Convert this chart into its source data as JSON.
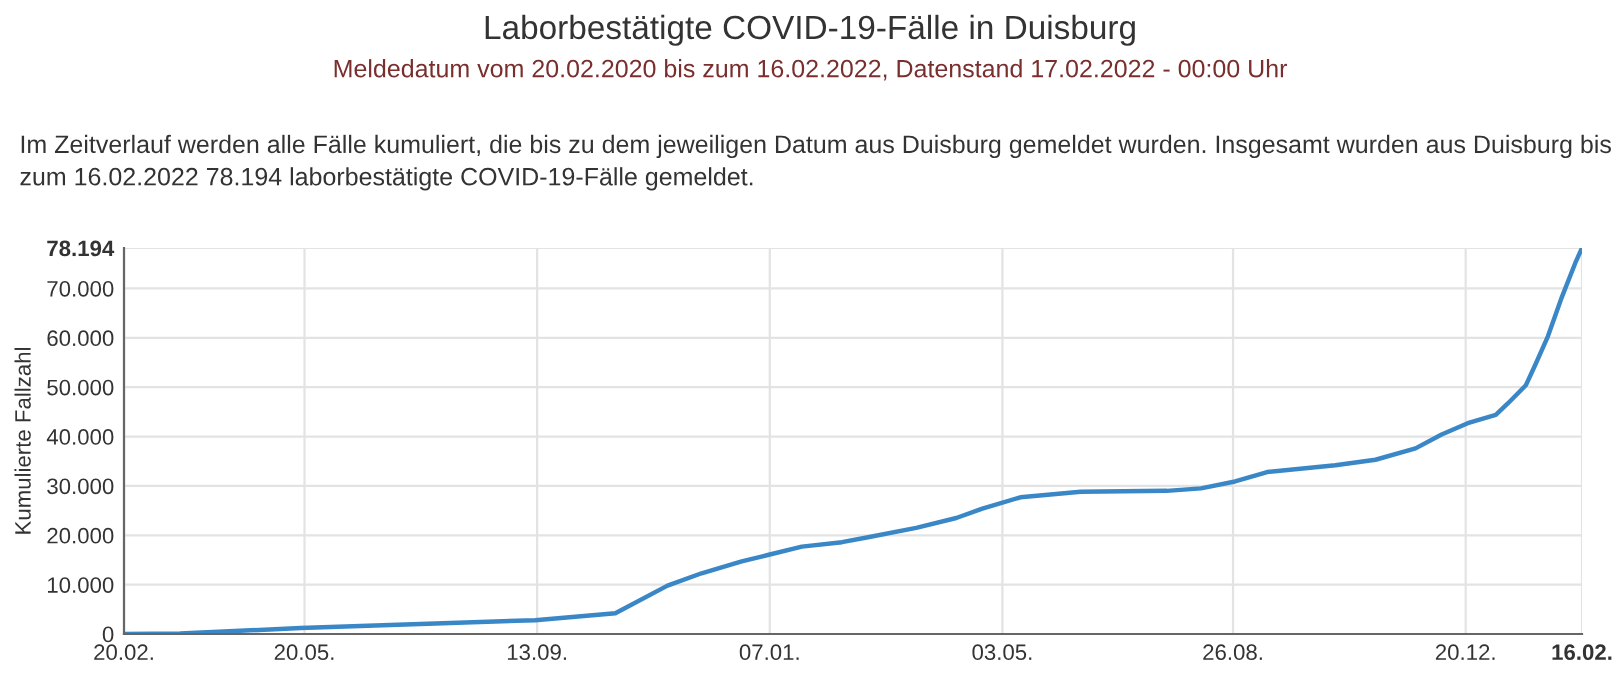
{
  "chart_data": {
    "type": "line",
    "title": "Laborbestätigte COVID-19-Fälle in Duisburg",
    "subtitle": "Meldedatum vom 20.02.2020 bis zum 16.02.2022, Datenstand 17.02.2022 - 00:00 Uhr",
    "annotations": [
      "Im Zeitverlauf werden alle Fälle kumuliert, die bis zu dem jeweiligen Datum aus Duisburg gemeldet wurden. Insgesamt wurden aus Duisburg bis zum 16.02.2022 78.194 laborbestätigte COVID-19-Fälle gemeldet."
    ],
    "ylabel": "Kumulierte Fallzahl",
    "x": [
      "2020-02-20",
      "2020-03-19",
      "2020-05-18",
      "2020-09-12",
      "2020-10-22",
      "2020-11-17",
      "2020-12-04",
      "2020-12-24",
      "2021-01-06",
      "2021-01-23",
      "2021-02-12",
      "2021-02-25",
      "2021-03-21",
      "2021-04-10",
      "2021-04-23",
      "2021-05-12",
      "2021-06-11",
      "2021-07-24",
      "2021-08-10",
      "2021-08-27",
      "2021-09-12",
      "2021-10-16",
      "2021-11-05",
      "2021-11-25",
      "2021-12-08",
      "2021-12-21",
      "2022-01-04",
      "2022-01-10",
      "2022-01-19",
      "2022-01-24",
      "2022-01-30",
      "2022-02-06",
      "2022-02-13",
      "2022-02-16"
    ],
    "series": [
      {
        "color": "#3a87c7",
        "values": [
          0,
          100,
          1200,
          2800,
          4200,
          9800,
          12300,
          14700,
          16000,
          17700,
          18600,
          19600,
          21500,
          23500,
          25400,
          27700,
          28800,
          29000,
          29500,
          30900,
          32800,
          34200,
          35300,
          37600,
          40400,
          42700,
          44400,
          46700,
          50400,
          54800,
          60300,
          68300,
          75500,
          78194
        ]
      }
    ],
    "xlim": [
      "2020-02-20",
      "2022-02-16"
    ],
    "xticks": [
      {
        "value": "2020-02-20",
        "label": "20.02."
      },
      {
        "value": "2020-05-20",
        "label": "20.05."
      },
      {
        "value": "2020-09-13",
        "label": "13.09."
      },
      {
        "value": "2021-01-07",
        "label": "07.01."
      },
      {
        "value": "2021-05-03",
        "label": "03.05."
      },
      {
        "value": "2021-08-26",
        "label": "26.08."
      },
      {
        "value": "2021-12-20",
        "label": "20.12."
      },
      {
        "value": "2022-02-16",
        "label": "16.02."
      }
    ],
    "ylim": [
      0,
      78194
    ],
    "yticks": [
      {
        "value": 0,
        "label": "0"
      },
      {
        "value": 10000,
        "label": "10.000"
      },
      {
        "value": 20000,
        "label": "20.000"
      },
      {
        "value": 30000,
        "label": "30.000"
      },
      {
        "value": 40000,
        "label": "40.000"
      },
      {
        "value": 50000,
        "label": "50.000"
      },
      {
        "value": 60000,
        "label": "60.000"
      },
      {
        "value": 70000,
        "label": "70.000"
      },
      {
        "value": 78194,
        "label": "78.194"
      }
    ],
    "grid": true,
    "legend": false,
    "marker": "none",
    "line_style": "solid"
  }
}
